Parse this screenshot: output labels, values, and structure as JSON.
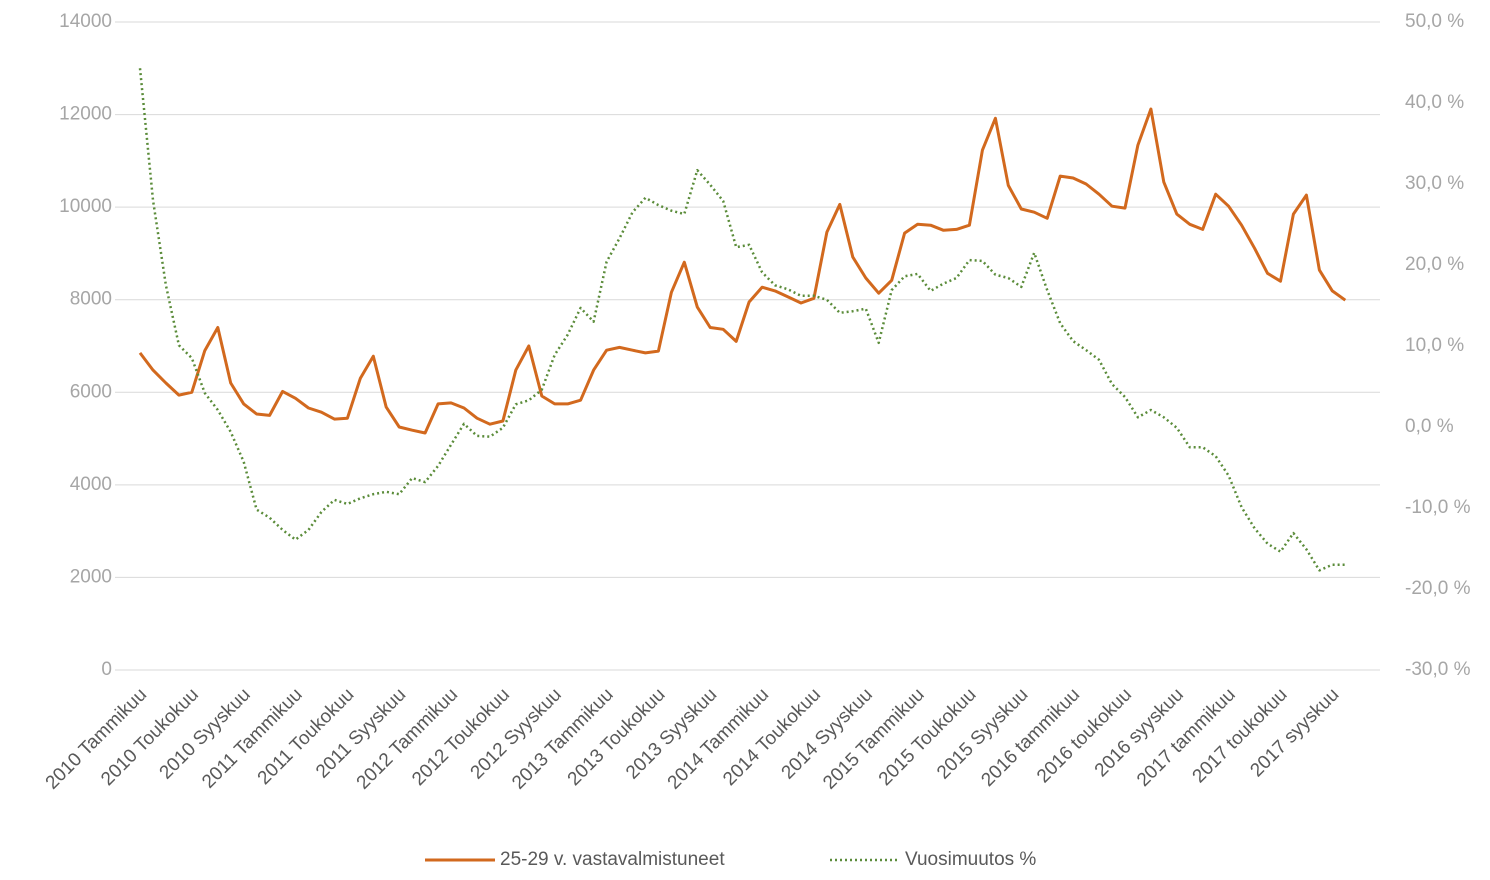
{
  "chart_data": {
    "type": "line",
    "categories": [
      "2010 Tammikuu",
      null,
      null,
      null,
      "2010 Toukokuu",
      null,
      null,
      null,
      "2010 Syyskuu",
      null,
      null,
      null,
      "2011 Tammikuu",
      null,
      null,
      null,
      "2011 Toukokuu",
      null,
      null,
      null,
      "2011 Syyskuu",
      null,
      null,
      null,
      "2012 Tammikuu",
      null,
      null,
      null,
      "2012 Toukokuu",
      null,
      null,
      null,
      "2012 Syyskuu",
      null,
      null,
      null,
      "2013 Tammikuu",
      null,
      null,
      null,
      "2013 Toukokuu",
      null,
      null,
      null,
      "2013 Syyskuu",
      null,
      null,
      null,
      "2014 Tammikuu",
      null,
      null,
      null,
      "2014 Toukokuu",
      null,
      null,
      null,
      "2014 Syyskuu",
      null,
      null,
      null,
      "2015 Tammikuu",
      null,
      null,
      null,
      "2015 Toukokuu",
      null,
      null,
      null,
      "2015 Syyskuu",
      null,
      null,
      null,
      "2016 tammikuu",
      null,
      null,
      null,
      "2016 toukokuu",
      null,
      null,
      null,
      "2016 syyskuu",
      null,
      null,
      null,
      "2017 tammikuu",
      null,
      null,
      null,
      "2017 toukokuu",
      null,
      null,
      null,
      "2017 syyskuu",
      null
    ],
    "series": [
      {
        "name": "25-29 v. vastavalmistuneet",
        "color": "#d2691e",
        "axis": "y",
        "values": [
          6850,
          6480,
          6200,
          5940,
          6000,
          6900,
          7400,
          6200,
          5750,
          5530,
          5500,
          6020,
          5870,
          5660,
          5570,
          5420,
          5440,
          6300,
          6780,
          5680,
          5250,
          5180,
          5120,
          5750,
          5770,
          5660,
          5440,
          5310,
          5380,
          6480,
          7000,
          5920,
          5750,
          5750,
          5830,
          6480,
          6910,
          6970,
          6910,
          6850,
          6890,
          8160,
          8810,
          7840,
          7400,
          7360,
          7100,
          7950,
          8270,
          8190,
          8060,
          7930,
          8030,
          9460,
          10060,
          8920,
          8470,
          8140,
          8420,
          9440,
          9630,
          9610,
          9500,
          9520,
          9610,
          11230,
          11920,
          10470,
          9960,
          9890,
          9760,
          10670,
          10630,
          10500,
          10280,
          10020,
          9980,
          11340,
          12120,
          10540,
          9850,
          9630,
          9520,
          10280,
          10020,
          9610,
          9110,
          8570,
          8400,
          9850,
          10260,
          8640,
          8190,
          7990
        ]
      },
      {
        "name": "Vuosimuutos %",
        "color": "#5b8c3a",
        "axis": "y2",
        "dash": "dotted",
        "values": [
          44.3,
          28.0,
          17.5,
          10.1,
          8.5,
          4.2,
          2.1,
          -0.6,
          -4.3,
          -10.2,
          -11.2,
          -12.7,
          -13.9,
          -12.7,
          -10.5,
          -9.0,
          -9.5,
          -8.8,
          -8.3,
          -8.0,
          -8.3,
          -6.3,
          -6.8,
          -4.8,
          -2.2,
          0.4,
          -1.1,
          -1.2,
          -0.1,
          2.8,
          3.3,
          4.6,
          8.9,
          11.4,
          14.7,
          13.0,
          20.4,
          23.3,
          26.5,
          28.3,
          27.4,
          26.7,
          26.3,
          31.7,
          29.9,
          27.9,
          22.2,
          22.5,
          19.1,
          17.5,
          17.0,
          16.2,
          16.2,
          15.7,
          14.1,
          14.3,
          14.6,
          10.4,
          16.9,
          18.6,
          18.9,
          16.8,
          17.7,
          18.4,
          20.6,
          20.5,
          18.8,
          18.4,
          17.3,
          21.5,
          16.9,
          12.8,
          10.6,
          9.5,
          8.3,
          5.3,
          3.7,
          1.2,
          2.1,
          1.2,
          -0.1,
          -2.5,
          -2.5,
          -3.6,
          -6.0,
          -9.9,
          -12.5,
          -14.4,
          -15.4,
          -13.1,
          -15.1,
          -17.7,
          -17.0,
          -17.0
        ]
      }
    ],
    "ylim": [
      0,
      14000
    ],
    "yticks": [
      0,
      2000,
      4000,
      6000,
      8000,
      10000,
      12000,
      14000
    ],
    "y2lim": [
      -30,
      50
    ],
    "y2ticks": [
      {
        "value": -30,
        "label": "-30,0 %"
      },
      {
        "value": -20,
        "label": "-20,0 %"
      },
      {
        "value": -10,
        "label": "-10,0 %"
      },
      {
        "value": 0,
        "label": "0,0 %"
      },
      {
        "value": 10,
        "label": "10,0 %"
      },
      {
        "value": 20,
        "label": "20,0 %"
      },
      {
        "value": 30,
        "label": "30,0 %"
      },
      {
        "value": 40,
        "label": "40,0 %"
      },
      {
        "value": 50,
        "label": "50,0 %"
      }
    ],
    "grid": true,
    "legend": "bottom"
  }
}
